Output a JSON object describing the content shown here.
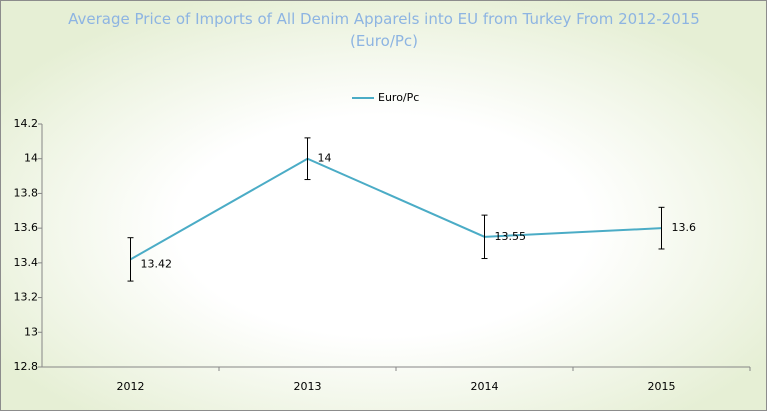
{
  "chart_data": {
    "type": "line",
    "title": "Average Price of Imports of All Denim Apparels into EU from Turkey From 2012-2015 (Euro/Pc)",
    "categories": [
      "2012",
      "2013",
      "2014",
      "2015"
    ],
    "series": [
      {
        "name": "Euro/Pc",
        "color": "#4bacc6",
        "values": [
          13.42,
          14,
          13.55,
          13.6
        ],
        "errors": [
          0.125,
          0.12,
          0.125,
          0.12
        ]
      }
    ],
    "ylim": [
      12.8,
      14.2
    ],
    "yticks": [
      12.8,
      13,
      13.2,
      13.4,
      13.6,
      13.8,
      14,
      14.2
    ],
    "legend": "top",
    "data_labels": true
  }
}
